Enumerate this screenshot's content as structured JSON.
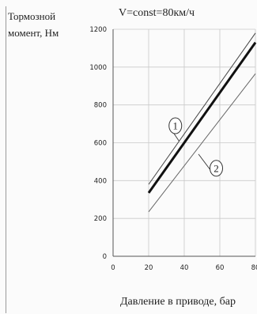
{
  "chart_data": {
    "type": "line",
    "title": "V=const=80км/ч",
    "ylabel": [
      "Тормозной",
      "момент, Нм"
    ],
    "xlabel": "Давление в приводе, бар",
    "xlim": [
      0,
      80
    ],
    "ylim": [
      0,
      1200
    ],
    "xticks": [
      "0",
      "20",
      "40",
      "60",
      "80"
    ],
    "yticks": [
      "0",
      "200",
      "400",
      "600",
      "800",
      "1000",
      "1200"
    ],
    "grid": true,
    "series": [
      {
        "name": "",
        "style": "thin",
        "color": "#444444",
        "x": [
          20,
          80
        ],
        "y": [
          380,
          1180
        ]
      },
      {
        "name": "",
        "style": "thick",
        "color": "#111111",
        "x": [
          20,
          80
        ],
        "y": [
          335,
          1130
        ]
      },
      {
        "name": "",
        "style": "thin",
        "color": "#666666",
        "x": [
          20,
          80
        ],
        "y": [
          235,
          965
        ]
      }
    ],
    "annotations": [
      {
        "text": "1",
        "x": 35,
        "y": 690,
        "target_x": 37,
        "target_y": 610
      },
      {
        "text": "2",
        "x": 58,
        "y": 465,
        "target_x": 48,
        "target_y": 540
      }
    ]
  }
}
